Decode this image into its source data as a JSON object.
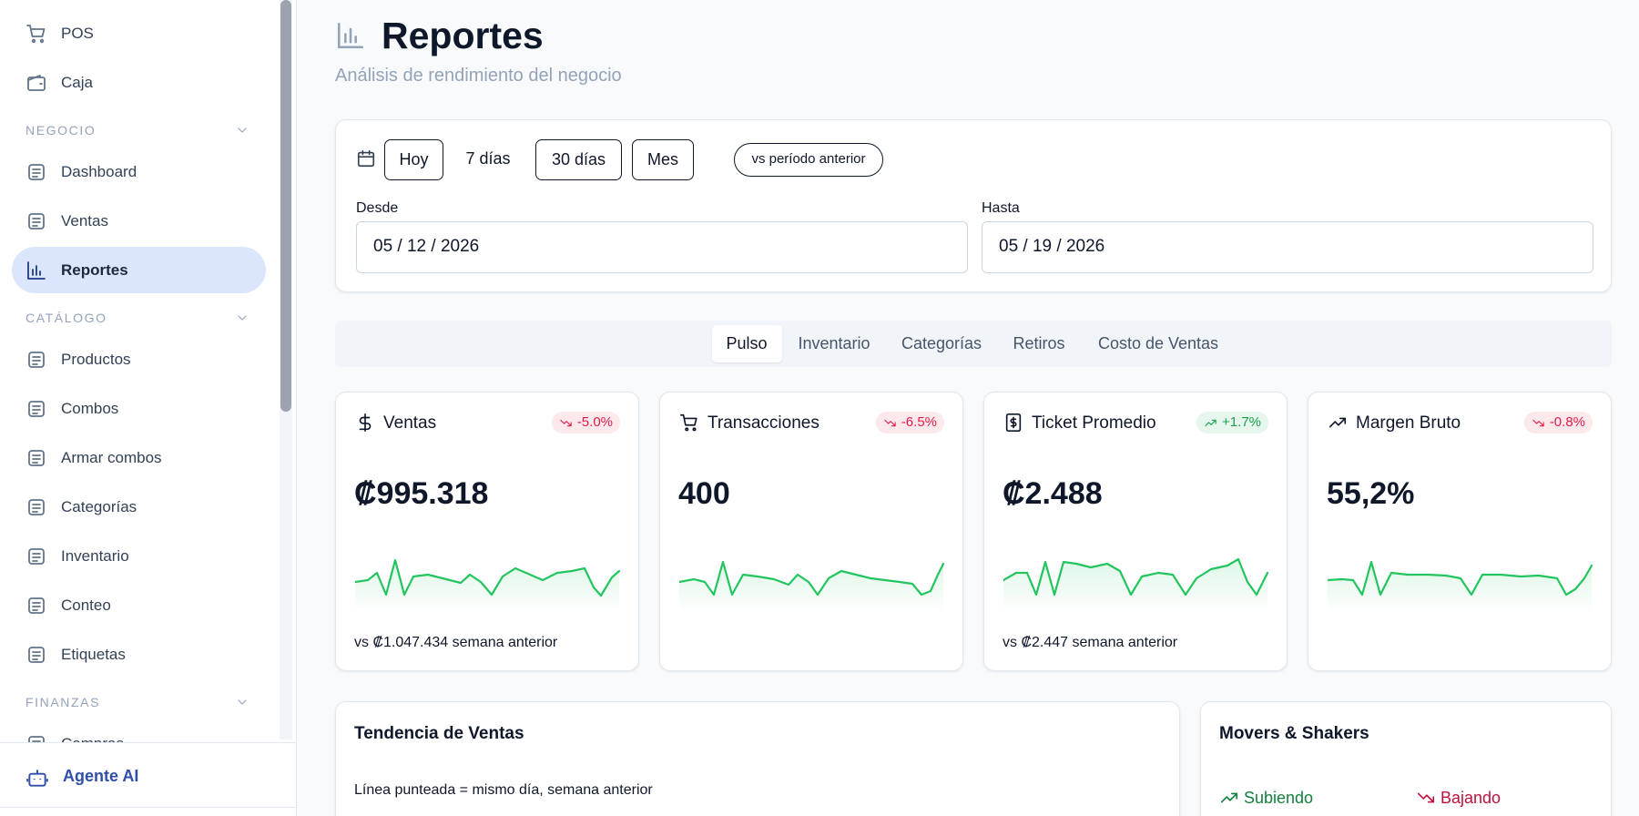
{
  "sidebar": {
    "top_items": [
      "POS",
      "Caja"
    ],
    "sections": [
      {
        "title": "NEGOCIO",
        "items": [
          "Dashboard",
          "Ventas",
          "Reportes"
        ]
      },
      {
        "title": "CATÁLOGO",
        "items": [
          "Productos",
          "Combos",
          "Armar combos",
          "Categorías",
          "Inventario",
          "Conteo",
          "Etiquetas"
        ]
      },
      {
        "title": "FINANZAS",
        "items": [
          "Compras"
        ]
      }
    ],
    "active": {
      "section": 0,
      "item": 2
    },
    "footer": "Agente AI"
  },
  "header": {
    "title": "Reportes",
    "subtitle": "Análisis de rendimiento del negocio"
  },
  "filters": {
    "presets": [
      "Hoy",
      "7 días",
      "30 días",
      "Mes"
    ],
    "outlined": [
      true,
      false,
      true,
      true
    ],
    "compare": "vs período anterior",
    "from_label": "Desde",
    "from_value": "05 / 12 / 2026",
    "to_label": "Hasta",
    "to_value": "05 / 19 / 2026"
  },
  "tabs": {
    "items": [
      "Pulso",
      "Inventario",
      "Categorías",
      "Retiros",
      "Costo de Ventas"
    ],
    "active": 0
  },
  "kpis": [
    {
      "label": "Ventas",
      "change": "-5.0%",
      "trend": "down",
      "value": "₡995.318",
      "comparison": "vs ₡1.047.434 semana anterior"
    },
    {
      "label": "Transacciones",
      "change": "-6.5%",
      "trend": "down",
      "value": "400"
    },
    {
      "label": "Ticket Promedio",
      "change": "+1.7%",
      "trend": "up",
      "value": "₡2.488",
      "comparison": "vs ₡2.447 semana anterior"
    },
    {
      "label": "Margen Bruto",
      "change": "-0.8%",
      "trend": "down",
      "value": "55,2%"
    }
  ],
  "panels": {
    "trend": {
      "title": "Tendencia de Ventas",
      "note": "Línea punteada = mismo día, semana anterior"
    },
    "movers": {
      "title": "Movers & Shakers",
      "up": "Subiendo",
      "down": "Bajando"
    }
  }
}
